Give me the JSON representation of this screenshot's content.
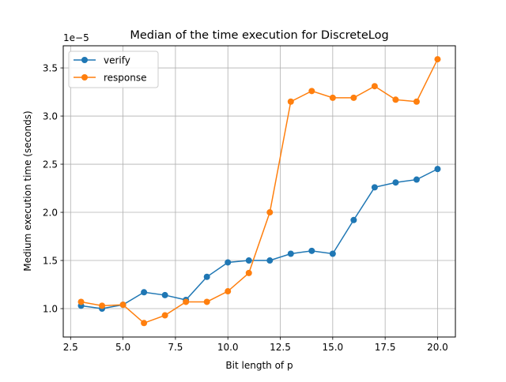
{
  "chart_data": {
    "type": "line",
    "title": "Median of the time execution for DiscreteLog",
    "xlabel": "Bit length of p",
    "ylabel": "Medium execution time (seconds)",
    "y_offset_label": "1e−5",
    "xlim": [
      2.15,
      20.85
    ],
    "ylim": [
      0.705,
      3.73
    ],
    "x_ticks": [
      2.5,
      5.0,
      7.5,
      10.0,
      12.5,
      15.0,
      17.5,
      20.0
    ],
    "x_tick_labels": [
      "2.5",
      "5.0",
      "7.5",
      "10.0",
      "12.5",
      "15.0",
      "17.5",
      "20.0"
    ],
    "y_ticks": [
      1.0,
      1.5,
      2.0,
      2.5,
      3.0,
      3.5
    ],
    "y_tick_labels": [
      "1.0",
      "1.5",
      "2.0",
      "2.5",
      "3.0",
      "3.5"
    ],
    "y_scale_factor": 1e-05,
    "grid": true,
    "legend_position": "upper-left",
    "x": [
      3,
      4,
      5,
      6,
      7,
      8,
      9,
      10,
      11,
      12,
      13,
      14,
      15,
      16,
      17,
      18,
      19,
      20
    ],
    "series": [
      {
        "name": "verify",
        "color": "#1f77b4",
        "values": [
          1.03,
          1.0,
          1.04,
          1.17,
          1.14,
          1.09,
          1.33,
          1.48,
          1.5,
          1.5,
          1.57,
          1.6,
          1.57,
          1.92,
          2.26,
          2.31,
          2.34,
          2.45
        ]
      },
      {
        "name": "response",
        "color": "#ff7f0e",
        "values": [
          1.07,
          1.03,
          1.04,
          0.85,
          0.93,
          1.07,
          1.07,
          1.18,
          1.37,
          2.0,
          3.15,
          3.26,
          3.19,
          3.19,
          3.31,
          3.17,
          3.15,
          3.59
        ]
      }
    ]
  }
}
